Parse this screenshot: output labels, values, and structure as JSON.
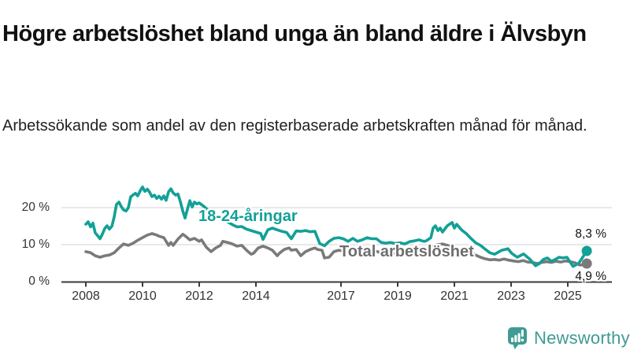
{
  "header": {
    "title": "Högre arbetslöshet bland unga än bland äldre i Älvsbyn",
    "subtitle": "Arbetssökande som andel av den registerbaserade arbetskraften månad för månad."
  },
  "chart_data": {
    "type": "line",
    "unit": "%",
    "grid": "horizontal-only",
    "legend_position": "inline-labels-on-lines",
    "xlim": [
      2007.15,
      2026.55
    ],
    "ylim": [
      0,
      27
    ],
    "x_ticks": [
      2008,
      2010,
      2012,
      2014,
      2017,
      2019,
      2021,
      2023,
      2025
    ],
    "x_tick_labels": [
      "2008",
      "2010",
      "2012",
      "2014",
      "2017",
      "2019",
      "2021",
      "2023",
      "2025"
    ],
    "y_ticks": [
      0,
      10,
      20
    ],
    "y_tick_labels": [
      "0 %",
      "10 %",
      "20 %"
    ],
    "axis_color": "#3A3A3A",
    "gridline_color": "#DCDCDC",
    "series": [
      {
        "name": "18-24-åringar",
        "color": "#12A097",
        "end_label": "8,3 %",
        "end_value": 8.3,
        "points": [
          [
            2008.0,
            15.5
          ],
          [
            2008.08,
            16.2
          ],
          [
            2008.17,
            14.8
          ],
          [
            2008.25,
            15.8
          ],
          [
            2008.33,
            13.2
          ],
          [
            2008.42,
            12.4
          ],
          [
            2008.5,
            11.6
          ],
          [
            2008.58,
            12.8
          ],
          [
            2008.67,
            14.4
          ],
          [
            2008.75,
            15.1
          ],
          [
            2008.83,
            14.2
          ],
          [
            2008.92,
            15.0
          ],
          [
            2009.0,
            17.5
          ],
          [
            2009.08,
            20.9
          ],
          [
            2009.17,
            21.5
          ],
          [
            2009.25,
            20.3
          ],
          [
            2009.33,
            19.4
          ],
          [
            2009.42,
            19.1
          ],
          [
            2009.5,
            20.0
          ],
          [
            2009.58,
            22.9
          ],
          [
            2009.67,
            23.5
          ],
          [
            2009.75,
            23.9
          ],
          [
            2009.83,
            23.2
          ],
          [
            2009.92,
            24.6
          ],
          [
            2010.0,
            25.6
          ],
          [
            2010.08,
            24.4
          ],
          [
            2010.17,
            25.0
          ],
          [
            2010.25,
            24.2
          ],
          [
            2010.33,
            23.0
          ],
          [
            2010.42,
            23.4
          ],
          [
            2010.5,
            22.5
          ],
          [
            2010.58,
            23.1
          ],
          [
            2010.67,
            22.3
          ],
          [
            2010.75,
            23.2
          ],
          [
            2010.83,
            22.0
          ],
          [
            2010.92,
            24.3
          ],
          [
            2011.0,
            25.1
          ],
          [
            2011.08,
            24.0
          ],
          [
            2011.17,
            23.4
          ],
          [
            2011.25,
            23.7
          ],
          [
            2011.33,
            21.7
          ],
          [
            2011.42,
            19.1
          ],
          [
            2011.5,
            17.2
          ],
          [
            2011.58,
            19.5
          ],
          [
            2011.67,
            21.9
          ],
          [
            2011.75,
            20.2
          ],
          [
            2011.83,
            21.5
          ],
          [
            2011.92,
            21.0
          ],
          [
            2012.0,
            21.3
          ],
          [
            2012.17,
            20.3
          ],
          [
            2012.33,
            19.2
          ],
          [
            2012.5,
            18.3
          ],
          [
            2012.67,
            17.4
          ],
          [
            2012.83,
            16.8
          ],
          [
            2013.0,
            16.2
          ],
          [
            2013.17,
            15.4
          ],
          [
            2013.33,
            14.8
          ],
          [
            2013.5,
            14.9
          ],
          [
            2013.67,
            14.2
          ],
          [
            2013.83,
            13.8
          ],
          [
            2014.0,
            13.4
          ],
          [
            2014.17,
            13.0
          ],
          [
            2014.25,
            11.4
          ],
          [
            2014.42,
            14.0
          ],
          [
            2014.58,
            14.5
          ],
          [
            2014.75,
            14.0
          ],
          [
            2014.92,
            13.6
          ],
          [
            2015.08,
            13.3
          ],
          [
            2015.25,
            11.6
          ],
          [
            2015.42,
            13.7
          ],
          [
            2015.58,
            13.6
          ],
          [
            2015.75,
            13.8
          ],
          [
            2015.92,
            13.5
          ],
          [
            2016.08,
            13.6
          ],
          [
            2016.25,
            10.3
          ],
          [
            2016.42,
            9.7
          ],
          [
            2016.58,
            10.9
          ],
          [
            2016.75,
            11.7
          ],
          [
            2016.92,
            11.9
          ],
          [
            2017.08,
            11.6
          ],
          [
            2017.25,
            10.9
          ],
          [
            2017.42,
            11.7
          ],
          [
            2017.58,
            10.9
          ],
          [
            2017.75,
            11.3
          ],
          [
            2017.92,
            11.9
          ],
          [
            2018.08,
            11.6
          ],
          [
            2018.25,
            11.6
          ],
          [
            2018.42,
            10.6
          ],
          [
            2018.58,
            10.4
          ],
          [
            2018.75,
            10.6
          ],
          [
            2018.92,
            10.3
          ],
          [
            2019.08,
            10.5
          ],
          [
            2019.25,
            10.2
          ],
          [
            2019.42,
            10.8
          ],
          [
            2019.58,
            11.0
          ],
          [
            2019.75,
            11.3
          ],
          [
            2019.92,
            10.9
          ],
          [
            2020.0,
            11.0
          ],
          [
            2020.17,
            11.9
          ],
          [
            2020.25,
            14.5
          ],
          [
            2020.33,
            15.1
          ],
          [
            2020.42,
            13.8
          ],
          [
            2020.5,
            14.5
          ],
          [
            2020.58,
            13.4
          ],
          [
            2020.75,
            15.1
          ],
          [
            2020.92,
            16.0
          ],
          [
            2021.0,
            14.5
          ],
          [
            2021.08,
            15.5
          ],
          [
            2021.25,
            14.0
          ],
          [
            2021.42,
            13.0
          ],
          [
            2021.58,
            11.7
          ],
          [
            2021.75,
            10.5
          ],
          [
            2021.92,
            9.8
          ],
          [
            2022.08,
            8.8
          ],
          [
            2022.25,
            7.8
          ],
          [
            2022.42,
            7.4
          ],
          [
            2022.67,
            8.5
          ],
          [
            2022.89,
            8.9
          ],
          [
            2023.03,
            7.6
          ],
          [
            2023.22,
            6.6
          ],
          [
            2023.44,
            7.5
          ],
          [
            2023.67,
            6.0
          ],
          [
            2023.86,
            4.3
          ],
          [
            2024.0,
            4.9
          ],
          [
            2024.14,
            6.0
          ],
          [
            2024.28,
            6.4
          ],
          [
            2024.42,
            5.5
          ],
          [
            2024.56,
            6.0
          ],
          [
            2024.69,
            6.6
          ],
          [
            2024.83,
            6.4
          ],
          [
            2024.97,
            6.6
          ],
          [
            2025.19,
            4.1
          ],
          [
            2025.39,
            5.0
          ],
          [
            2025.67,
            8.3
          ]
        ]
      },
      {
        "name": "Total arbetslöshet",
        "color": "#7A7A7A",
        "end_label": "4,9 %",
        "end_value": 4.9,
        "points": [
          [
            2008.0,
            8.1
          ],
          [
            2008.17,
            7.8
          ],
          [
            2008.33,
            7.0
          ],
          [
            2008.5,
            6.6
          ],
          [
            2008.67,
            7.0
          ],
          [
            2008.83,
            7.2
          ],
          [
            2009.0,
            7.8
          ],
          [
            2009.17,
            9.1
          ],
          [
            2009.33,
            10.2
          ],
          [
            2009.5,
            9.8
          ],
          [
            2009.67,
            10.4
          ],
          [
            2009.83,
            11.2
          ],
          [
            2010.0,
            11.9
          ],
          [
            2010.17,
            12.6
          ],
          [
            2010.33,
            13.0
          ],
          [
            2010.5,
            12.6
          ],
          [
            2010.58,
            12.3
          ],
          [
            2010.75,
            11.9
          ],
          [
            2010.92,
            9.8
          ],
          [
            2011.0,
            10.6
          ],
          [
            2011.08,
            9.8
          ],
          [
            2011.25,
            11.5
          ],
          [
            2011.42,
            12.8
          ],
          [
            2011.5,
            12.4
          ],
          [
            2011.67,
            11.3
          ],
          [
            2011.83,
            11.7
          ],
          [
            2012.0,
            10.9
          ],
          [
            2012.08,
            11.3
          ],
          [
            2012.25,
            9.3
          ],
          [
            2012.42,
            8.1
          ],
          [
            2012.58,
            9.1
          ],
          [
            2012.75,
            9.8
          ],
          [
            2012.83,
            10.9
          ],
          [
            2013.0,
            10.6
          ],
          [
            2013.17,
            10.2
          ],
          [
            2013.33,
            9.6
          ],
          [
            2013.5,
            9.8
          ],
          [
            2013.67,
            8.5
          ],
          [
            2013.83,
            7.4
          ],
          [
            2013.92,
            7.7
          ],
          [
            2014.08,
            9.1
          ],
          [
            2014.25,
            9.6
          ],
          [
            2014.42,
            9.1
          ],
          [
            2014.58,
            8.5
          ],
          [
            2014.75,
            7.0
          ],
          [
            2014.83,
            7.7
          ],
          [
            2015.0,
            8.7
          ],
          [
            2015.17,
            9.1
          ],
          [
            2015.25,
            8.5
          ],
          [
            2015.42,
            8.7
          ],
          [
            2015.58,
            7.0
          ],
          [
            2015.75,
            8.1
          ],
          [
            2015.92,
            8.7
          ],
          [
            2016.08,
            9.1
          ],
          [
            2016.17,
            8.7
          ],
          [
            2016.33,
            8.5
          ],
          [
            2016.42,
            6.4
          ],
          [
            2016.58,
            6.6
          ],
          [
            2016.75,
            8.1
          ],
          [
            2016.92,
            8.5
          ],
          [
            2017.08,
            8.3
          ],
          [
            2017.25,
            7.8
          ],
          [
            2017.42,
            8.2
          ],
          [
            2017.58,
            8.0
          ],
          [
            2017.75,
            8.3
          ],
          [
            2017.92,
            8.1
          ],
          [
            2018.08,
            8.5
          ],
          [
            2018.25,
            8.2
          ],
          [
            2018.42,
            7.8
          ],
          [
            2018.58,
            7.5
          ],
          [
            2018.75,
            7.8
          ],
          [
            2018.92,
            7.6
          ],
          [
            2019.08,
            7.4
          ],
          [
            2019.25,
            7.2
          ],
          [
            2019.42,
            7.6
          ],
          [
            2019.58,
            7.8
          ],
          [
            2019.75,
            8.0
          ],
          [
            2019.92,
            8.2
          ],
          [
            2020.08,
            8.6
          ],
          [
            2020.25,
            9.6
          ],
          [
            2020.42,
            10.0
          ],
          [
            2020.58,
            10.2
          ],
          [
            2020.75,
            9.8
          ],
          [
            2020.92,
            9.4
          ],
          [
            2021.08,
            9.0
          ],
          [
            2021.25,
            8.6
          ],
          [
            2021.42,
            8.2
          ],
          [
            2021.58,
            7.8
          ],
          [
            2021.75,
            7.2
          ],
          [
            2021.92,
            6.6
          ],
          [
            2022.08,
            6.2
          ],
          [
            2022.25,
            5.9
          ],
          [
            2022.42,
            6.0
          ],
          [
            2022.58,
            5.8
          ],
          [
            2022.75,
            6.1
          ],
          [
            2022.92,
            5.8
          ],
          [
            2023.08,
            5.6
          ],
          [
            2023.25,
            5.4
          ],
          [
            2023.42,
            5.7
          ],
          [
            2023.58,
            5.3
          ],
          [
            2023.75,
            5.2
          ],
          [
            2023.92,
            4.9
          ],
          [
            2024.08,
            5.2
          ],
          [
            2024.25,
            5.4
          ],
          [
            2024.42,
            5.2
          ],
          [
            2024.58,
            5.5
          ],
          [
            2024.75,
            5.3
          ],
          [
            2024.92,
            5.6
          ],
          [
            2025.08,
            5.4
          ],
          [
            2025.25,
            5.1
          ],
          [
            2025.42,
            4.5
          ],
          [
            2025.58,
            4.6
          ],
          [
            2025.67,
            4.9
          ]
        ]
      }
    ]
  },
  "footer": {
    "brand": "Newsworthy"
  }
}
